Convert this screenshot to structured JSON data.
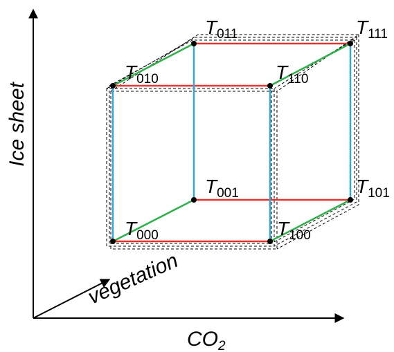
{
  "axes": {
    "x": {
      "label": "CO",
      "subscript": "2"
    },
    "y": {
      "label": "Ice sheet"
    },
    "z": {
      "label": "vegetation"
    }
  },
  "vertices": [
    {
      "id": "000",
      "symbol": "T",
      "subscript": "000"
    },
    {
      "id": "100",
      "symbol": "T",
      "subscript": "100"
    },
    {
      "id": "010",
      "symbol": "T",
      "subscript": "010"
    },
    {
      "id": "110",
      "symbol": "T",
      "subscript": "110"
    },
    {
      "id": "001",
      "symbol": "T",
      "subscript": "001"
    },
    {
      "id": "101",
      "symbol": "T",
      "subscript": "101"
    },
    {
      "id": "011",
      "symbol": "T",
      "subscript": "011"
    },
    {
      "id": "111",
      "symbol": "T",
      "subscript": "111"
    }
  ],
  "edge_colors": {
    "co2": "#e8302e",
    "ice_sheet": "#3aa6d8",
    "vegetation": "#2fb04a"
  }
}
